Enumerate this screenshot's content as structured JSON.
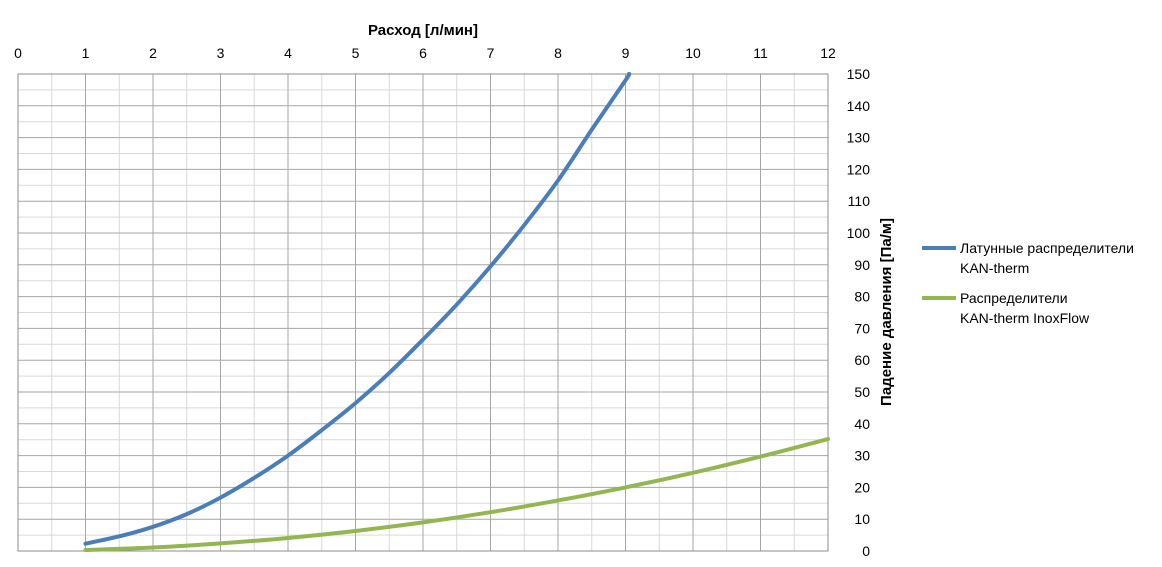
{
  "chart_data": {
    "type": "line",
    "xlabel": "Расход [л/мин]",
    "ylabel": "Падение давления [Па/м]",
    "xlim": [
      0,
      12
    ],
    "ylim": [
      0,
      150
    ],
    "x_ticks": [
      "0",
      "1",
      "2",
      "3",
      "4",
      "5",
      "6",
      "7",
      "8",
      "9",
      "10",
      "11",
      "12"
    ],
    "y_ticks": [
      "0",
      "10",
      "20",
      "30",
      "40",
      "50",
      "60",
      "70",
      "80",
      "90",
      "100",
      "110",
      "120",
      "130",
      "140",
      "150"
    ],
    "x_axis_position": "top",
    "y_axis_position": "right",
    "grid": true,
    "legend_position": "right",
    "series": [
      {
        "name_lines": [
          "Латунные распределители",
          "KAN-therm"
        ],
        "color": "#4a7ebb",
        "x": [
          1,
          1.5,
          2,
          2.5,
          3,
          3.5,
          4,
          4.5,
          5,
          5.5,
          6,
          6.5,
          7,
          7.5,
          8,
          8.5,
          9,
          9.05
        ],
        "y": [
          2.3,
          4.6,
          7.6,
          11.6,
          16.8,
          23.0,
          30.0,
          38.0,
          46.5,
          56.0,
          66.5,
          77.5,
          89.5,
          102.5,
          116.5,
          132.5,
          148.0,
          150.0
        ]
      },
      {
        "name_lines": [
          "Распределители",
          "KAN-therm InoxFlow"
        ],
        "color": "#93b650",
        "x": [
          1,
          2,
          3,
          4,
          5,
          6,
          7,
          8,
          9,
          10,
          11,
          12
        ],
        "y": [
          0.3,
          1.1,
          2.4,
          4.1,
          6.3,
          9.0,
          12.2,
          15.9,
          20.0,
          24.6,
          29.7,
          35.2
        ]
      }
    ]
  }
}
